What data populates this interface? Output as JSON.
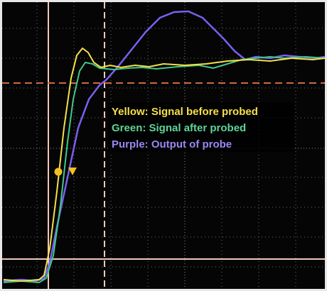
{
  "legend": [
    "Yellow: Signal before probed",
    "Green: Signal after probed",
    "Purple: Output of probe"
  ]
}
